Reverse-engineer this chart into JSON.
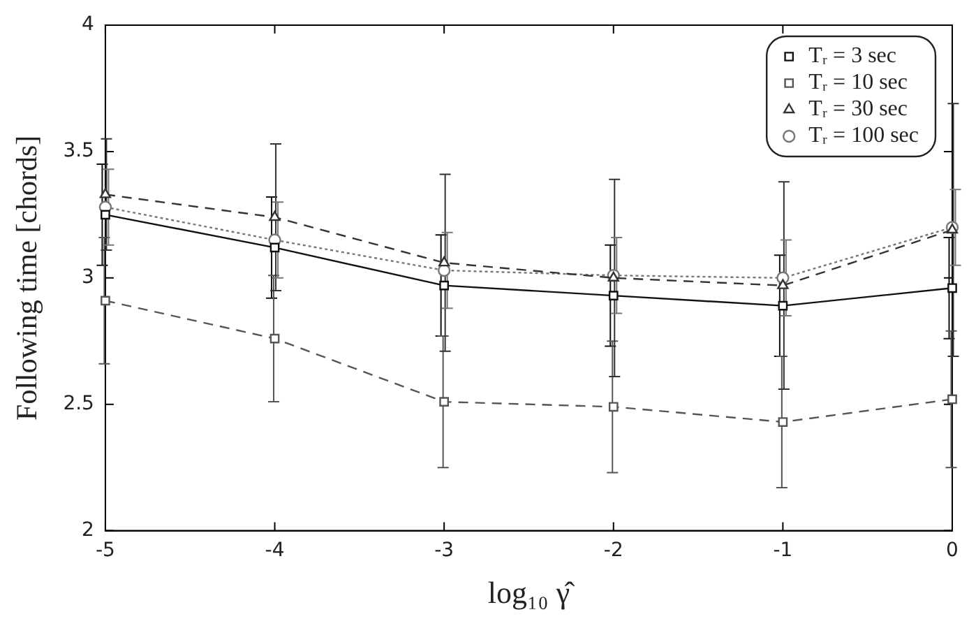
{
  "chart_data": {
    "type": "line",
    "xlabel": "log₁₀ γ̂",
    "ylabel": "Following time [chords]",
    "x": [
      -5,
      -4,
      -3,
      -2,
      -1,
      0
    ],
    "series": [
      {
        "name": "Tᵣ = 3 sec",
        "color": "#111111",
        "marker": "square",
        "line_style": "solid",
        "values": [
          3.25,
          3.12,
          2.97,
          2.93,
          2.89,
          2.96
        ],
        "errors": [
          0.2,
          0.2,
          0.2,
          0.2,
          0.2,
          0.2
        ]
      },
      {
        "name": "Tᵣ = 10 sec",
        "color": "#555555",
        "marker": "square",
        "line_style": "dashed",
        "values": [
          2.91,
          2.76,
          2.51,
          2.49,
          2.43,
          2.52
        ],
        "errors": [
          0.25,
          0.25,
          0.26,
          0.26,
          0.26,
          0.27
        ]
      },
      {
        "name": "Tᵣ = 30 sec",
        "color": "#333333",
        "marker": "triangle",
        "line_style": "dashed",
        "values": [
          3.33,
          3.24,
          3.06,
          3.0,
          2.97,
          3.19
        ],
        "errors": [
          0.22,
          0.29,
          0.35,
          0.39,
          0.41,
          0.5
        ]
      },
      {
        "name": "Tᵣ = 100 sec",
        "color": "#777777",
        "marker": "circle",
        "line_style": "dotted",
        "values": [
          3.28,
          3.15,
          3.03,
          3.01,
          3.0,
          3.2
        ],
        "errors": [
          0.15,
          0.15,
          0.15,
          0.15,
          0.15,
          0.15
        ]
      }
    ],
    "xlim": [
      -5,
      0
    ],
    "xticks": [
      -5,
      -4,
      -3,
      -2,
      -1,
      0
    ],
    "ylim": [
      2,
      4
    ],
    "yticks": [
      2,
      2.5,
      3,
      3.5,
      4
    ],
    "grid": false,
    "legend": "top right"
  }
}
